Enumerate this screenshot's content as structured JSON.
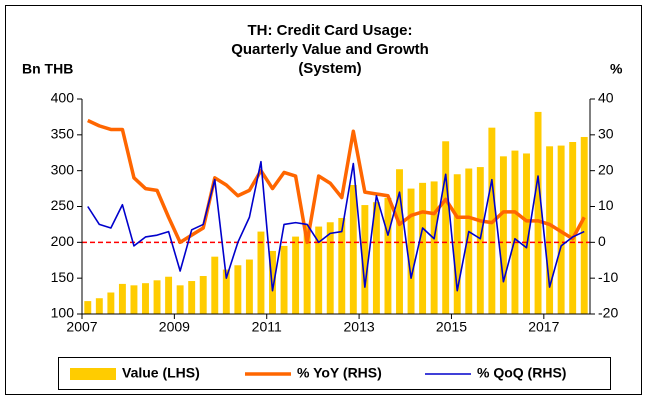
{
  "chart_data": {
    "type": "bar_line",
    "title": [
      "TH: Credit Card Usage:",
      "Quarterly Value and Growth",
      "(System)"
    ],
    "ylabel": "Bn THB",
    "y2label": "%",
    "x": [
      2007.125,
      2007.375,
      2007.625,
      2007.875,
      2008.125,
      2008.375,
      2008.625,
      2008.875,
      2009.125,
      2009.375,
      2009.625,
      2009.875,
      2010.125,
      2010.375,
      2010.625,
      2010.875,
      2011.125,
      2011.375,
      2011.625,
      2011.875,
      2012.125,
      2012.375,
      2012.625,
      2012.875,
      2013.125,
      2013.375,
      2013.625,
      2013.875,
      2014.125,
      2014.375,
      2014.625,
      2014.875,
      2015.125,
      2015.375,
      2015.625,
      2015.875,
      2016.125,
      2016.375,
      2016.625,
      2016.875,
      2017.125,
      2017.375,
      2017.625,
      2017.875
    ],
    "xlim": [
      2007,
      2018
    ],
    "xticks": [
      2007,
      2009,
      2011,
      2013,
      2015,
      2017
    ],
    "ylim": [
      100,
      400
    ],
    "yticks": [
      100,
      150,
      200,
      250,
      300,
      350,
      400
    ],
    "y2lim": [
      -20,
      40
    ],
    "y2ticks": [
      -20,
      -10,
      0,
      10,
      20,
      30,
      40
    ],
    "reference_line": {
      "value": 0,
      "axis": "y2",
      "color": "#ff0000"
    },
    "series": [
      {
        "name": "Value (LHS)",
        "kind": "bar",
        "axis": "y",
        "color": "#ffcc00",
        "values": [
          118,
          122,
          130,
          142,
          140,
          143,
          147,
          152,
          140,
          146,
          153,
          180,
          162,
          168,
          176,
          215,
          188,
          195,
          208,
          225,
          222,
          228,
          234,
          280,
          252,
          256,
          262,
          302,
          275,
          283,
          285,
          341,
          295,
          303,
          305,
          360,
          320,
          328,
          324,
          382,
          334,
          335,
          340,
          347
        ]
      },
      {
        "name": "% YoY (RHS)",
        "kind": "line",
        "axis": "y2",
        "color": "#ff6600",
        "width": 3.5,
        "values": [
          34,
          32.5,
          31.5,
          31.5,
          18,
          15,
          14.5,
          7,
          0,
          2,
          4,
          18,
          16,
          13,
          14.5,
          20,
          15,
          19.5,
          18.5,
          0,
          18.5,
          16.5,
          12.5,
          31,
          14,
          13.5,
          13,
          5,
          7.5,
          8.5,
          8,
          12,
          7,
          7,
          6,
          5.5,
          8.5,
          8.5,
          6,
          6,
          5,
          3,
          1,
          7
        ]
      },
      {
        "name": "% QoQ (RHS)",
        "kind": "line",
        "axis": "y2",
        "color": "#0000cc",
        "width": 1.6,
        "values": [
          10,
          5,
          4,
          10.5,
          -1,
          1.5,
          2,
          3,
          -8,
          3.5,
          5,
          17.5,
          -10,
          0,
          7,
          22.5,
          -13.5,
          5,
          5.5,
          5,
          0,
          2.5,
          3,
          22,
          -12.5,
          13,
          2,
          14,
          -10,
          4,
          1,
          19,
          -13.5,
          3,
          1,
          17.5,
          -11,
          1,
          -1.5,
          18.5,
          -12.5,
          -1,
          1.5,
          3
        ]
      }
    ]
  }
}
